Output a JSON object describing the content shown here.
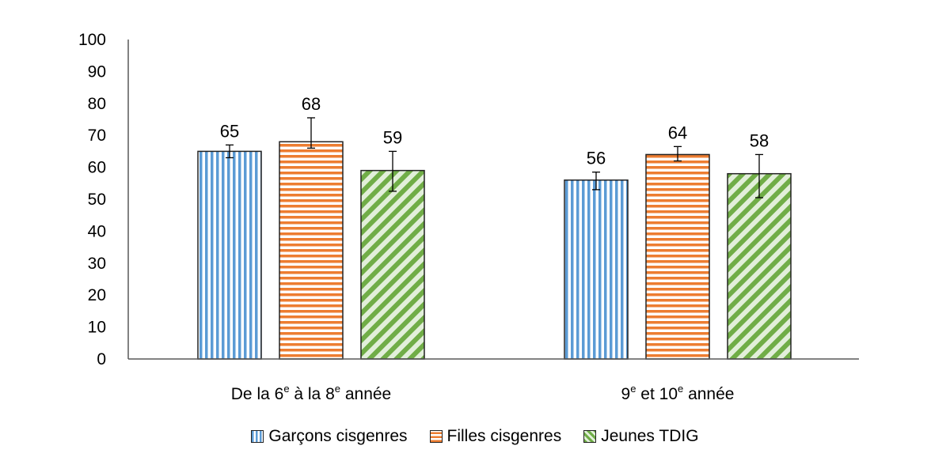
{
  "chart_data": {
    "type": "bar",
    "categories": [
      {
        "pre": "De la 6",
        "sup1": "e",
        "mid": " à la 8",
        "sup2": "e",
        "post": " année"
      },
      {
        "pre": "9",
        "sup1": "e",
        "mid": " et 10",
        "sup2": "e",
        "post": " année"
      }
    ],
    "series": [
      {
        "name": "Garçons cisgenres",
        "values": [
          65,
          56
        ],
        "error_low": [
          63,
          53
        ],
        "error_high": [
          67,
          58.5
        ],
        "color": "#5b9bd5",
        "pattern": "vertical-stripes"
      },
      {
        "name": "Filles cisgenres",
        "values": [
          68,
          64
        ],
        "error_low": [
          66,
          62
        ],
        "error_high": [
          75.5,
          66.5
        ],
        "color": "#ed7d31",
        "pattern": "horizontal-stripes"
      },
      {
        "name": "Jeunes TDIG",
        "values": [
          59,
          58
        ],
        "error_low": [
          52.5,
          50.5
        ],
        "error_high": [
          65,
          64
        ],
        "color": "#70ad47",
        "pattern": "diagonal-stripes"
      }
    ],
    "ylim": [
      0,
      100
    ],
    "yticks": [
      0,
      10,
      20,
      30,
      40,
      50,
      60,
      70,
      80,
      90,
      100
    ],
    "grid": false,
    "legend_position": "bottom",
    "title": "",
    "xlabel": "",
    "ylabel": ""
  }
}
